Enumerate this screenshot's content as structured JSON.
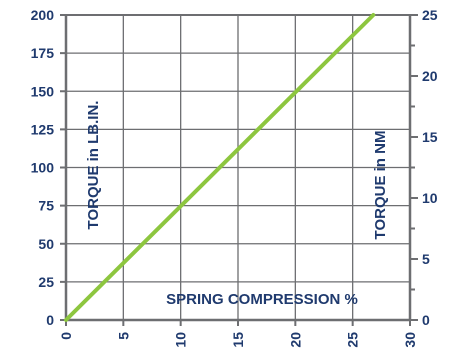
{
  "chart_data": {
    "type": "line",
    "title": "",
    "xlabel": "SPRING COMPRESSION %",
    "ylabel_left": "TORQUE in LB.IN.",
    "ylabel_right": "TORQUE in NM",
    "xlim": [
      0,
      30
    ],
    "ylim_left": [
      0,
      200
    ],
    "ylim_right": [
      0,
      25
    ],
    "x_ticks": [
      "0",
      "5",
      "10",
      "15",
      "20",
      "25",
      "30"
    ],
    "y_ticks_left": [
      "0",
      "25",
      "50",
      "75",
      "100",
      "125",
      "150",
      "175",
      "200"
    ],
    "y_ticks_right": [
      "0",
      "5",
      "10",
      "15",
      "20",
      "25"
    ],
    "grid": true,
    "line_color": "#8dc63f",
    "axis_color": "#6d6e71",
    "text_color": "#1f3a6e",
    "series": [
      {
        "x": [
          0,
          26.8
        ],
        "y": [
          0,
          200
        ]
      }
    ]
  }
}
